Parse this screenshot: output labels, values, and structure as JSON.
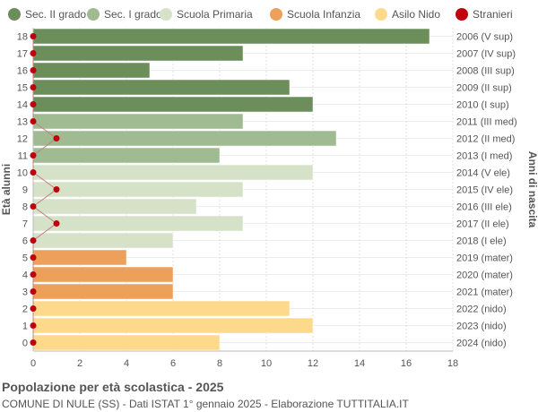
{
  "chart_data": {
    "type": "bar",
    "orientation": "horizontal",
    "title": "Popolazione per età scolastica - 2025",
    "subtitle": "COMUNE DI NULE (SS) - Dati ISTAT 1° gennaio 2025 - Elaborazione TUTTITALIA.IT",
    "ylabel_left": "Età alunni",
    "ylabel_right": "Anni di nascita",
    "xlim": [
      0,
      18
    ],
    "xticks": [
      0,
      2,
      4,
      6,
      8,
      10,
      12,
      14,
      16,
      18
    ],
    "grid": true,
    "legend_position": "top",
    "legend": [
      {
        "key": "sec2",
        "label": "Sec. II grado",
        "color": "#6b8e5a"
      },
      {
        "key": "sec1",
        "label": "Sec. I grado",
        "color": "#a0bb92"
      },
      {
        "key": "prim",
        "label": "Scuola Primaria",
        "color": "#d6e2c8"
      },
      {
        "key": "inf",
        "label": "Scuola Infanzia",
        "color": "#eda05a"
      },
      {
        "key": "nido",
        "label": "Asilo Nido",
        "color": "#fdd98c"
      },
      {
        "key": "stranieri",
        "label": "Stranieri",
        "color": "#c0000b"
      }
    ],
    "rows": [
      {
        "age": "18",
        "birth": "2006 (V sup)",
        "value": 17,
        "stranieri": 0,
        "group": "sec2"
      },
      {
        "age": "17",
        "birth": "2007 (IV sup)",
        "value": 9,
        "stranieri": 0,
        "group": "sec2"
      },
      {
        "age": "16",
        "birth": "2008 (III sup)",
        "value": 5,
        "stranieri": 0,
        "group": "sec2"
      },
      {
        "age": "15",
        "birth": "2009 (II sup)",
        "value": 11,
        "stranieri": 0,
        "group": "sec2"
      },
      {
        "age": "14",
        "birth": "2010 (I sup)",
        "value": 12,
        "stranieri": 0,
        "group": "sec2"
      },
      {
        "age": "13",
        "birth": "2011 (III med)",
        "value": 9,
        "stranieri": 0,
        "group": "sec1"
      },
      {
        "age": "12",
        "birth": "2012 (II med)",
        "value": 13,
        "stranieri": 1,
        "group": "sec1"
      },
      {
        "age": "11",
        "birth": "2013 (I med)",
        "value": 8,
        "stranieri": 0,
        "group": "sec1"
      },
      {
        "age": "10",
        "birth": "2014 (V ele)",
        "value": 12,
        "stranieri": 0,
        "group": "prim"
      },
      {
        "age": "9",
        "birth": "2015 (IV ele)",
        "value": 9,
        "stranieri": 1,
        "group": "prim"
      },
      {
        "age": "8",
        "birth": "2016 (III ele)",
        "value": 7,
        "stranieri": 0,
        "group": "prim"
      },
      {
        "age": "7",
        "birth": "2017 (II ele)",
        "value": 9,
        "stranieri": 1,
        "group": "prim"
      },
      {
        "age": "6",
        "birth": "2018 (I ele)",
        "value": 6,
        "stranieri": 0,
        "group": "prim"
      },
      {
        "age": "5",
        "birth": "2019 (mater)",
        "value": 4,
        "stranieri": 0,
        "group": "inf"
      },
      {
        "age": "4",
        "birth": "2020 (mater)",
        "value": 6,
        "stranieri": 0,
        "group": "inf"
      },
      {
        "age": "3",
        "birth": "2021 (mater)",
        "value": 6,
        "stranieri": 0,
        "group": "inf"
      },
      {
        "age": "2",
        "birth": "2022 (nido)",
        "value": 11,
        "stranieri": 0,
        "group": "nido"
      },
      {
        "age": "1",
        "birth": "2023 (nido)",
        "value": 12,
        "stranieri": 0,
        "group": "nido"
      },
      {
        "age": "0",
        "birth": "2024 (nido)",
        "value": 8,
        "stranieri": 0,
        "group": "nido"
      }
    ]
  }
}
